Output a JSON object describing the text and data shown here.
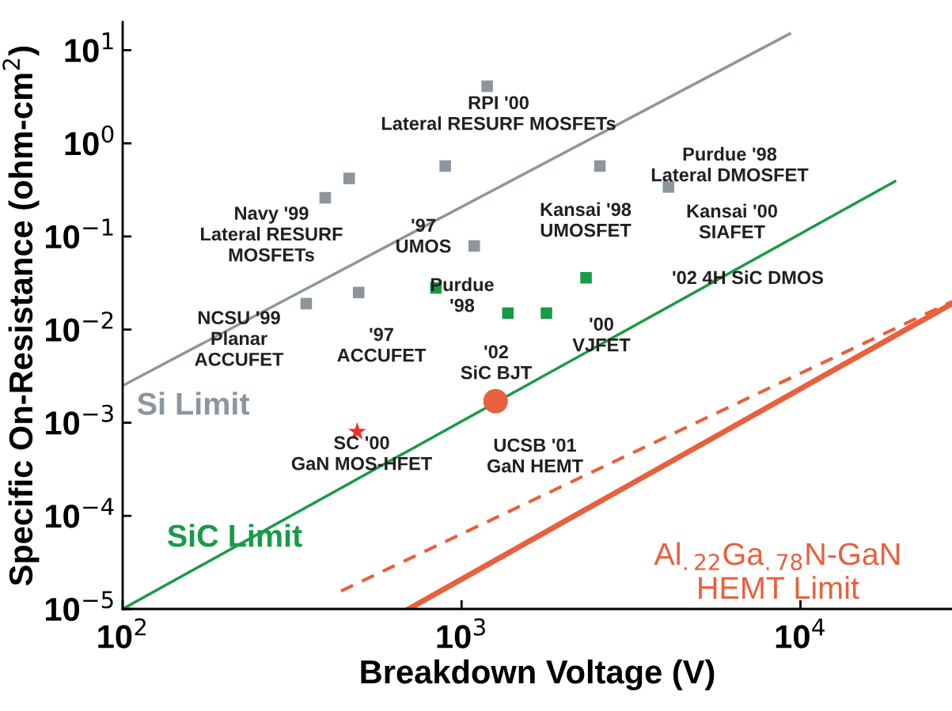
{
  "chart_data": {
    "type": "scatter",
    "xlabel": "Breakdown Voltage (V)",
    "ylabel": "Specific On-Resistance (ohm-cm$^{2}$)",
    "log": "xy",
    "xlim": [
      100,
      28000
    ],
    "ylim": [
      1e-05,
      20
    ],
    "xticks": [
      {
        "value": 100,
        "label": "10$^{2}$"
      },
      {
        "value": 1000,
        "label": "10$^{3}$"
      },
      {
        "value": 10000,
        "label": "10$^{4}$"
      }
    ],
    "yticks": [
      {
        "value": 1e-05,
        "label": "10$^{−5}$"
      },
      {
        "value": 0.0001,
        "label": "10$^{−4}$"
      },
      {
        "value": 0.001,
        "label": "10$^{−3}$"
      },
      {
        "value": 0.01,
        "label": "10$^{−2}$"
      },
      {
        "value": 0.1,
        "label": "10$^{−1}$"
      },
      {
        "value": 1,
        "label": "10$^{0}$"
      },
      {
        "value": 10,
        "label": "10$^{1}$"
      }
    ],
    "grid": false,
    "legend": false,
    "series": [
      {
        "type": "line",
        "name": "Si Limit",
        "color": "#8c969c",
        "x": [
          100,
          9300
        ],
        "values": [
          0.0025,
          15
        ],
        "line_style": "solid"
      },
      {
        "type": "line",
        "name": "SiC Limit",
        "color": "#1a9a48",
        "x": [
          100,
          19000
        ],
        "values": [
          1e-05,
          0.39
        ],
        "line_style": "solid"
      },
      {
        "type": "line",
        "name": "Al$_{.22}$Ga$_{.78}$N-GaN\nHEMT Limit",
        "color": "#e8603c",
        "x": [
          698,
          28000
        ],
        "values": [
          1e-05,
          0.019
        ],
        "line_style": "solid"
      },
      {
        "type": "line",
        "color": "#e8603c",
        "x": [
          441,
          28000
        ],
        "values": [
          1.56e-05,
          0.02
        ],
        "line_style": "dashed"
      },
      {
        "color": "#8c969c",
        "marker": "square",
        "x": [
          1190,
          895,
          466,
          396,
          2560,
          4080,
          1090,
          497,
          348
        ],
        "values": [
          4.1,
          0.57,
          0.42,
          0.26,
          0.57,
          0.34,
          0.079,
          0.025,
          0.019
        ]
      },
      {
        "color": "#1a9a48",
        "marker": "square",
        "x": [
          840,
          2330,
          1370,
          1780
        ],
        "values": [
          0.028,
          0.036,
          0.015,
          0.015
        ]
      },
      {
        "color": "#e8312a",
        "marker": "star",
        "x": [
          492
        ],
        "values": [
          0.0008
        ]
      },
      {
        "color": "#e8603c",
        "marker": "circle",
        "x": [
          1260
        ],
        "values": [
          0.0017
        ]
      }
    ],
    "annotations": [
      "RPI '00\nLateral RESURF MOSFETs",
      "Purdue '98\nLateral DMOSFET",
      "Navy '99\nLateral RESURF\nMOSFETs",
      "'97\nUMOS",
      "Kansai '98\nUMOSFET",
      "Kansai '00\nSIAFET",
      "Purdue\n'98",
      "'02 4H SiC DMOS",
      "NCSU '99\nPlanar\nACCUFET",
      "'97\nACCUFET",
      "'02\nSiC BJT",
      "'00\nVJFET",
      "SC '00\nGaN MOS-HFET",
      "UCSB '01\nGaN HEMT"
    ]
  }
}
